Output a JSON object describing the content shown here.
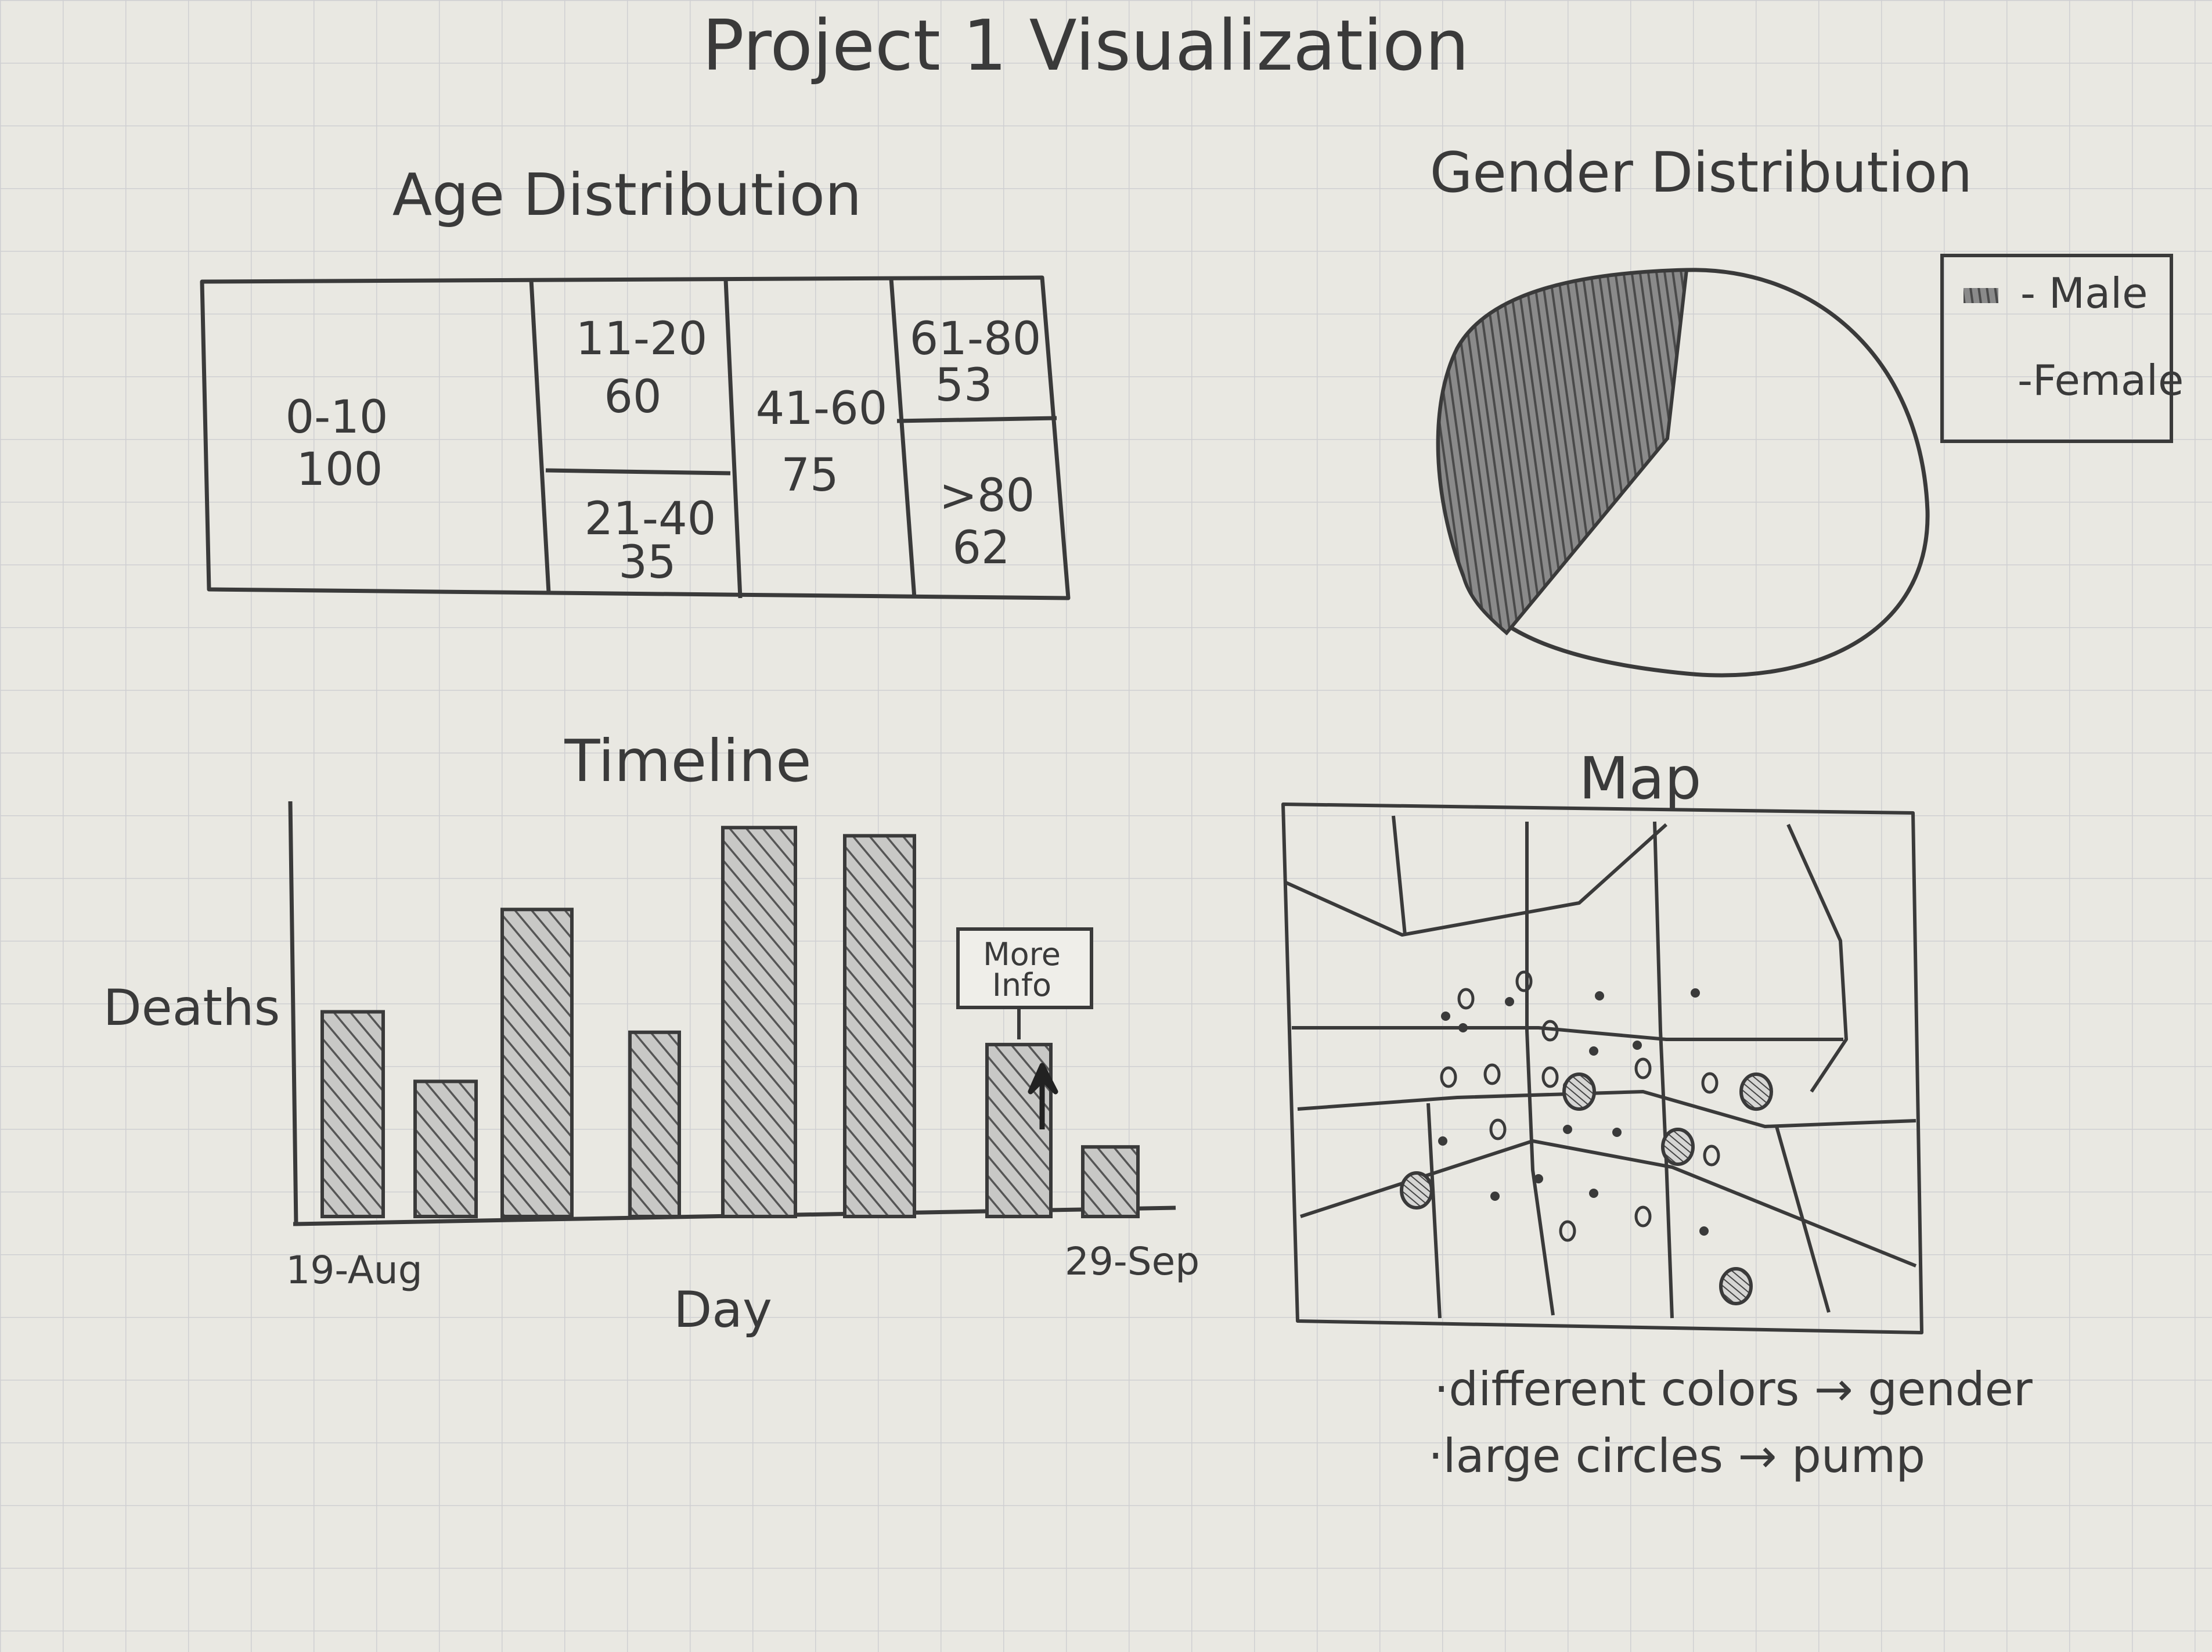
{
  "title": "Project 1 Visualization",
  "age": {
    "title": "Age Distribution",
    "cells": [
      {
        "range": "0-10",
        "count": "100"
      },
      {
        "range": "11-20",
        "count": "60"
      },
      {
        "range": "21-40",
        "count": "35"
      },
      {
        "range": "41-60",
        "count": "75"
      },
      {
        "range": "61-80",
        "count": "53"
      },
      {
        "range": ">80",
        "count": "62"
      }
    ]
  },
  "gender": {
    "title": "Gender Distribution",
    "legend": {
      "male": "- Male",
      "female": "-Female"
    },
    "male_fraction": 0.33
  },
  "timeline": {
    "title": "Timeline",
    "ylabel": "Deaths",
    "xlabel": "Day",
    "x_start": "19-Aug",
    "x_end": "29-Sep",
    "tooltip_line1": "More",
    "tooltip_line2": "Info"
  },
  "chart_data": {
    "type": "bar",
    "title": "Timeline",
    "xlabel": "Day",
    "ylabel": "Deaths",
    "x_tick_labels": [
      "19-Aug",
      "29-Sep"
    ],
    "values": [
      50,
      33,
      75,
      45,
      95,
      93,
      42,
      17
    ]
  },
  "map": {
    "title": "Map",
    "note1": "·different colors → gender",
    "note2": "·large circles → pump"
  },
  "colors": {
    "paper": "#e9e8e2",
    "grid": "#cfcfd2",
    "pencil": "#3a3a3a",
    "shade": "#6f6f6f"
  }
}
